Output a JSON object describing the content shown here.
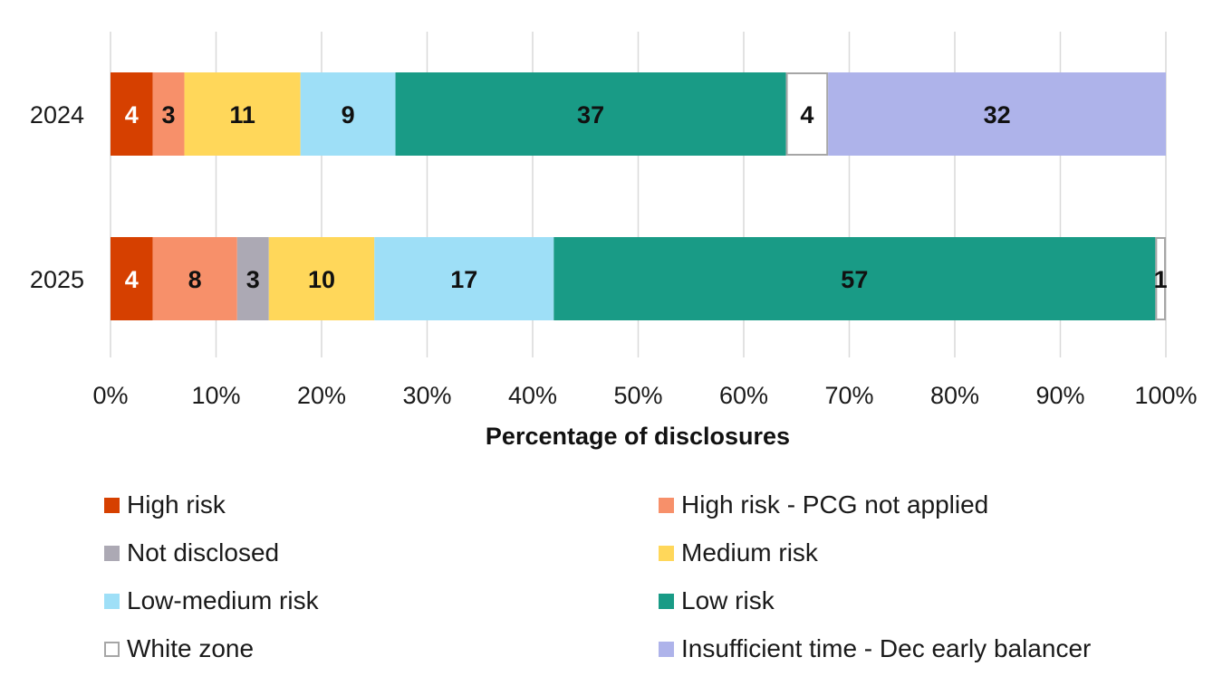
{
  "chart_data": {
    "type": "bar",
    "orientation": "horizontal",
    "stacked": true,
    "categories": [
      "2024",
      "2025"
    ],
    "xlabel": "Percentage of disclosures",
    "xlim": [
      0,
      100
    ],
    "x_ticks": [
      "0%",
      "10%",
      "20%",
      "30%",
      "40%",
      "50%",
      "60%",
      "70%",
      "80%",
      "90%",
      "100%"
    ],
    "grid": "vertical",
    "legend_position": "bottom",
    "series": [
      {
        "name": "High risk",
        "color": "#d64000",
        "label_color": "#ffffff",
        "values": [
          4,
          4
        ],
        "labels": [
          "4",
          "4"
        ]
      },
      {
        "name": "High risk - PCG not applied",
        "color": "#f7906a",
        "label_color": "#111111",
        "values": [
          3,
          8
        ],
        "labels": [
          "3",
          "8"
        ]
      },
      {
        "name": "Not disclosed",
        "color": "#aca9b4",
        "label_color": "#111111",
        "values": [
          0,
          3
        ],
        "labels": [
          "",
          "3"
        ]
      },
      {
        "name": "Medium risk",
        "color": "#ffd75a",
        "label_color": "#111111",
        "values": [
          11,
          10
        ],
        "labels": [
          "11",
          "10"
        ]
      },
      {
        "name": "Low-medium risk",
        "color": "#9edff7",
        "label_color": "#111111",
        "values": [
          9,
          17
        ],
        "labels": [
          "9",
          "17"
        ]
      },
      {
        "name": "Low risk",
        "color": "#199b86",
        "label_color": "#111111",
        "values": [
          37,
          57
        ],
        "labels": [
          "37",
          "57"
        ]
      },
      {
        "name": "White zone",
        "color": "#ffffff",
        "stroke": "#a6a6a6",
        "label_color": "#111111",
        "values": [
          4,
          1
        ],
        "labels": [
          "4",
          "1"
        ]
      },
      {
        "name": "Insufficient time - Dec early balancer",
        "color": "#aeb3ea",
        "label_color": "#111111",
        "values": [
          32,
          0
        ],
        "labels": [
          "32",
          ""
        ]
      }
    ]
  }
}
